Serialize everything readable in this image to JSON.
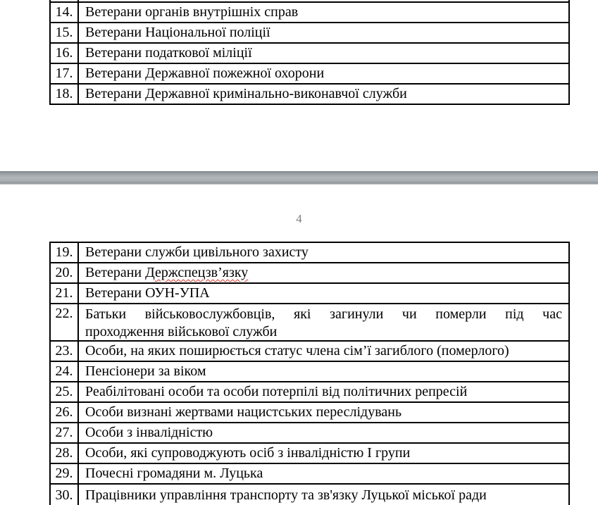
{
  "doc": {
    "page_number": "4",
    "colors": {
      "table_border": "#000000",
      "text": "#000000",
      "page_number_gray": "#808080",
      "spellcheck_underline_red": "#d93025",
      "page_separator_gray": "#a6acb0"
    },
    "page3": {
      "rows": [
        {
          "num": "14.",
          "text": "Ветерани органів внутрішніх справ"
        },
        {
          "num": "15.",
          "text": "Ветерани Національної поліції"
        },
        {
          "num": "16.",
          "text": "Ветерани податкової міліції"
        },
        {
          "num": "17.",
          "text": "Ветерани Державної пожежної охорони"
        },
        {
          "num": "18.",
          "text": "Ветерани Державної кримінально-виконавчої служби"
        }
      ]
    },
    "page4": {
      "rows": [
        {
          "num": "19.",
          "text": "Ветерани служби цивільного захисту"
        },
        {
          "num": "20.",
          "prefix": "Ветерани ",
          "misspelled": "Держспецзв’язку"
        },
        {
          "num": "21.",
          "text": "Ветерани ОУН-УПА"
        },
        {
          "num": "22.",
          "line1": "Батьки військовослужбовців, які загинули чи померли під час",
          "line2": "проходження військової служби"
        },
        {
          "num": "23.",
          "text": "Особи, на яких поширюється статус члена сім’ї загиблого (померлого)"
        },
        {
          "num": "24.",
          "text": "Пенсіонери за віком"
        },
        {
          "num": "25.",
          "text": "Реабілітовані особи та особи потерпілі від політичних репресій"
        },
        {
          "num": "26.",
          "text": "Особи визнані жертвами нацистських переслідувань"
        },
        {
          "num": "27.",
          "text": "Особи з інвалідністю"
        },
        {
          "num": "28.",
          "text": "Особи, які супроводжують осіб з інвалідністю І групи"
        },
        {
          "num": "29.",
          "text": "Почесні громадяни м. Луцька"
        },
        {
          "num": "30.",
          "text": "Працівники управління транспорту та зв'язку Луцької міської ради"
        }
      ]
    }
  }
}
